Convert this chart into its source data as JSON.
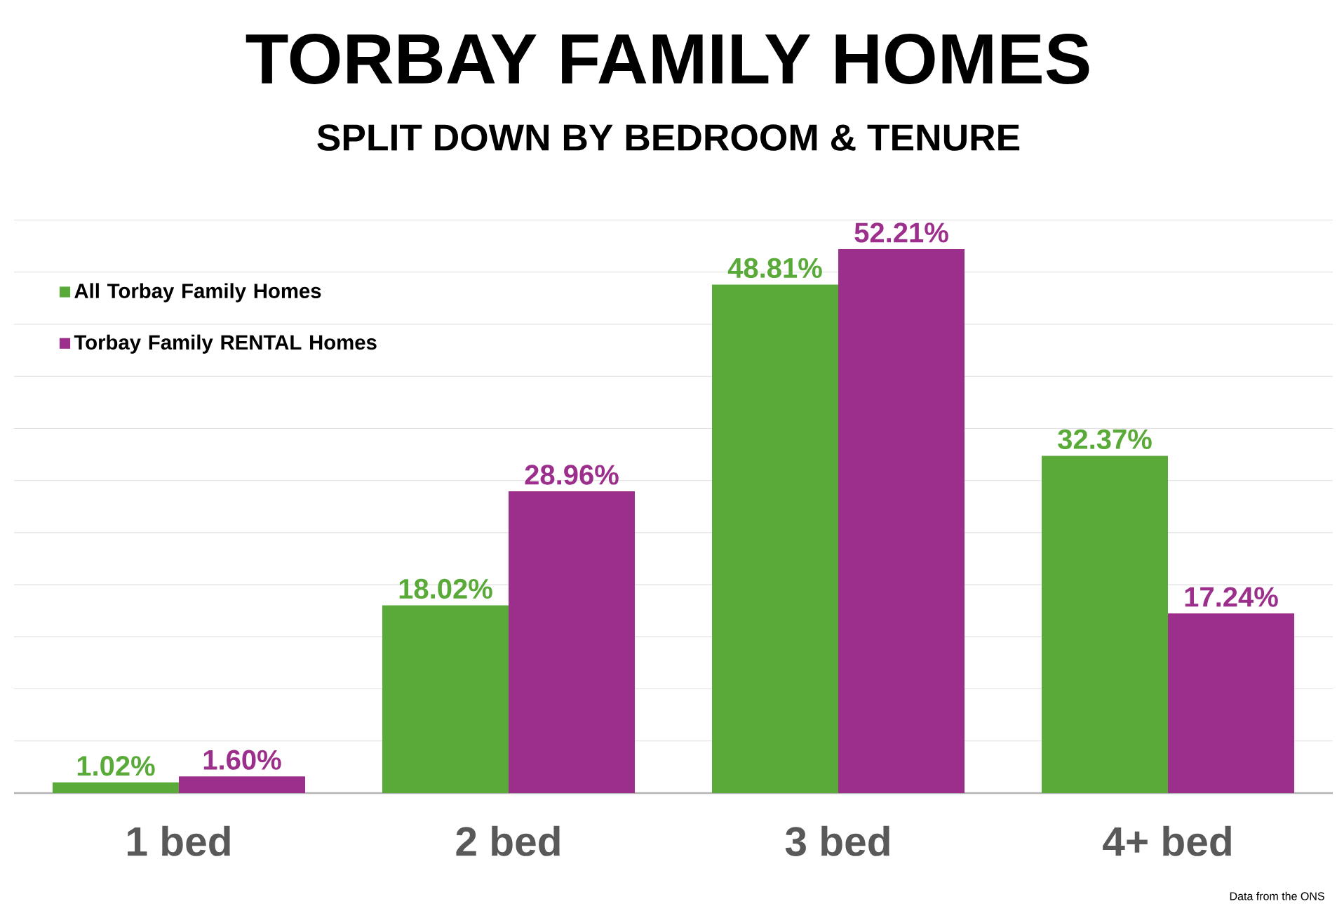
{
  "chart_data": {
    "type": "bar",
    "title": "TORBAY FAMILY HOMES",
    "subtitle": "SPLIT DOWN BY BEDROOM & TENURE",
    "categories": [
      "1 bed",
      "2 bed",
      "3 bed",
      "4+ bed"
    ],
    "series": [
      {
        "name": "All Torbay Family Homes",
        "color": "#5aaa3a",
        "values": [
          1.02,
          18.02,
          48.81,
          32.37
        ],
        "value_labels": [
          "1.02%",
          "18.02%",
          "48.81%",
          "32.37%"
        ]
      },
      {
        "name": "Torbay Family RENTAL Homes",
        "color": "#9c2f8c",
        "values": [
          1.6,
          28.96,
          52.21,
          17.24
        ],
        "value_labels": [
          "1.60%",
          "28.96%",
          "52.21%",
          "17.24%"
        ]
      }
    ],
    "tick_labels": "x",
    "grid": "y",
    "legend": "top left",
    "annotations": [
      "Data from the ONS"
    ]
  }
}
